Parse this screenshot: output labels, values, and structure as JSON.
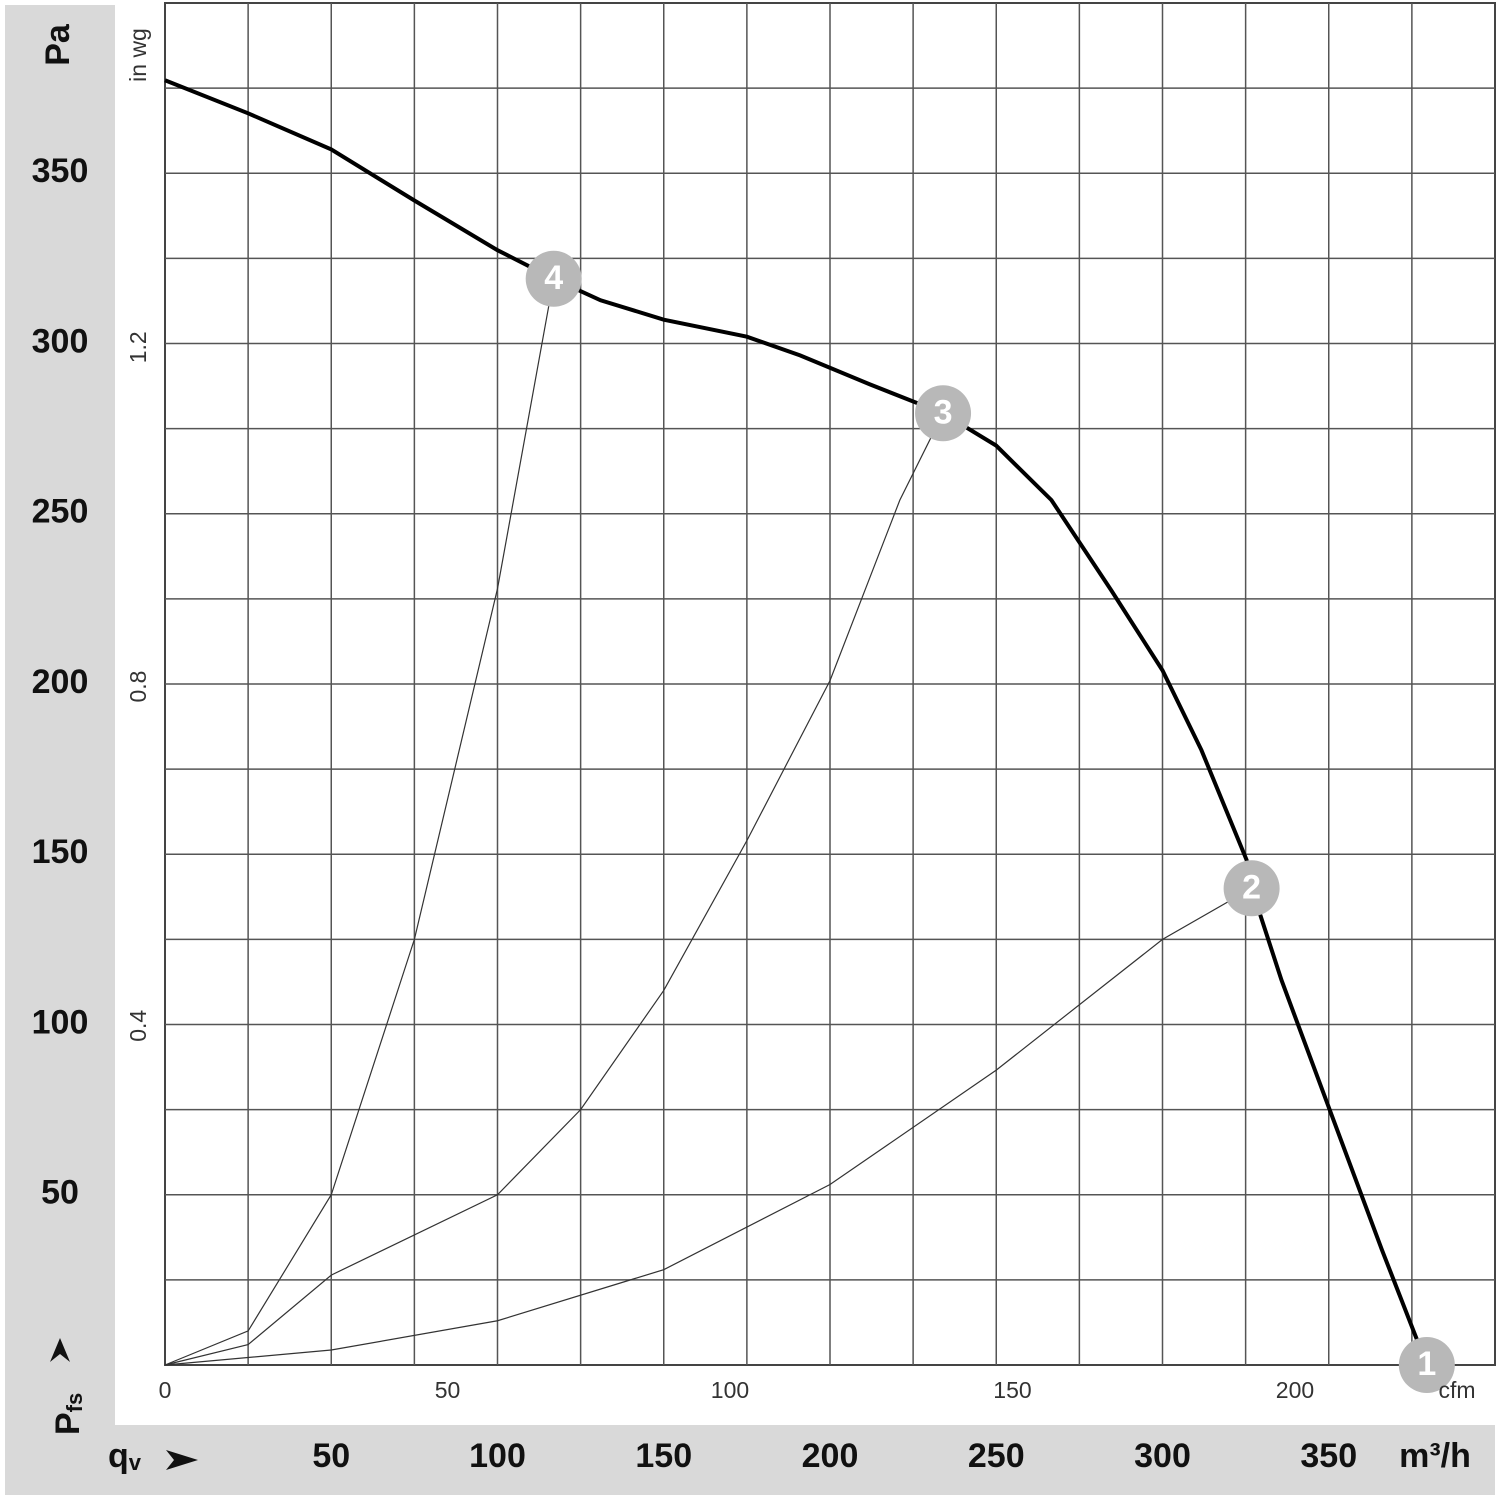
{
  "chart_data": {
    "type": "line",
    "y_label": "Pa",
    "y_symbol": "P",
    "y_symbol_sub": "fs",
    "x_label": "m³/h",
    "x_symbol": "q",
    "x_symbol_sub": "v",
    "x2_label": "cfm",
    "y2_label": "in wg",
    "xlim": [
      0,
      400
    ],
    "xticks": [
      50,
      100,
      150,
      200,
      250,
      300,
      350
    ],
    "x_grid": [
      25,
      50,
      75,
      100,
      125,
      150,
      175,
      200,
      225,
      250,
      275,
      300,
      325,
      350,
      375
    ],
    "ylim": [
      0,
      400
    ],
    "yticks": [
      50,
      100,
      150,
      200,
      250,
      300,
      350
    ],
    "y_grid": [
      25,
      50,
      75,
      100,
      125,
      150,
      175,
      200,
      225,
      250,
      275,
      300,
      325,
      350,
      375
    ],
    "x2lim": [
      0,
      235.4
    ],
    "x2ticks": [
      0,
      50,
      100,
      150,
      200
    ],
    "y2lim": [
      0,
      1.606
    ],
    "y2ticks": [
      0.4,
      0.8,
      1.2
    ],
    "grid": true,
    "series": [
      {
        "color": "#000000",
        "role": "fan",
        "x": [
          0,
          25,
          50,
          75,
          100,
          116.9,
          131,
          150,
          175,
          191,
          212,
          234,
          250,
          266.6,
          284.6,
          300,
          311.7,
          325.3,
          326.8,
          335.8,
          350.3,
          366,
          379.5
        ],
        "values": [
          377.3,
          367.6,
          357,
          342,
          327.4,
          319,
          312.7,
          307,
          302,
          296.5,
          288,
          279.5,
          270,
          254,
          227.5,
          204,
          180.6,
          148.3,
          140,
          113,
          74.9,
          33.8,
          0
        ]
      },
      {
        "color": "#333333",
        "role": "system",
        "x": [
          0,
          25,
          50,
          75,
          100,
          116.9
        ],
        "values": [
          0,
          10,
          50,
          125,
          228,
          319
        ]
      },
      {
        "color": "#333333",
        "role": "system",
        "x": [
          0,
          25,
          50,
          100,
          125,
          150,
          175,
          200,
          221,
          234
        ],
        "values": [
          0,
          6,
          26.4,
          50,
          75,
          110,
          154,
          201,
          254,
          279.5
        ]
      },
      {
        "color": "#333333",
        "role": "system",
        "x": [
          0,
          50,
          100,
          150,
          200,
          250,
          300,
          326.8
        ],
        "values": [
          0,
          4.4,
          13,
          28,
          53,
          86.6,
          125,
          140
        ]
      }
    ],
    "operating_points": {
      "color": "#b8b8b8",
      "labels": [
        "1",
        "2",
        "3",
        "4"
      ],
      "x": [
        379.5,
        326.8,
        234,
        116.9
      ],
      "values": [
        0,
        140,
        279.5,
        319
      ]
    }
  }
}
